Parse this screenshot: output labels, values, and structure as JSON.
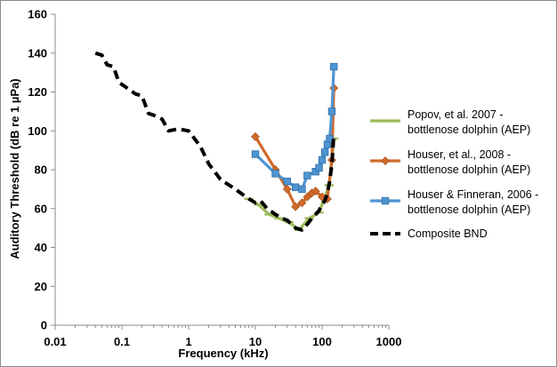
{
  "chart_data": {
    "type": "scatter",
    "title": "",
    "xlabel": "Frequency (kHz)",
    "ylabel": "Auditory Threshold (dB re 1 µPa)",
    "xscale": "log",
    "xlim": [
      0.01,
      1000
    ],
    "ylim": [
      0,
      160
    ],
    "xticks": [
      0.01,
      0.1,
      1,
      10,
      100,
      1000
    ],
    "xtick_labels": [
      "0.01",
      "0.1",
      "1",
      "10",
      "100",
      "1000"
    ],
    "yticks": [
      0,
      20,
      40,
      60,
      80,
      100,
      120,
      140,
      160
    ],
    "ytick_labels": [
      "0",
      "20",
      "40",
      "60",
      "80",
      "100",
      "120",
      "140",
      "160"
    ],
    "grid": false,
    "legend_position": "right",
    "series": [
      {
        "name": "Popov, et al. 2007 - bottlenose dolphin (AEP)",
        "color": "#9bbb59",
        "marker": "dash",
        "x": [
          8,
          11.2,
          16,
          22.5,
          32,
          45,
          64,
          90,
          128,
          150
        ],
        "y": [
          65,
          62,
          57,
          55,
          53,
          49,
          55,
          58,
          72,
          96
        ]
      },
      {
        "name": "Houser, et al., 2008 - bottlenose dolphin (AEP)",
        "color": "#d0692a",
        "marker": "diamond",
        "x": [
          10,
          20,
          30,
          40,
          50,
          60,
          70,
          80,
          100,
          120,
          140,
          150
        ],
        "y": [
          97,
          80,
          70,
          61,
          63,
          66,
          68,
          69,
          66,
          65,
          85,
          122
        ]
      },
      {
        "name": "Houser & Finneran, 2006 - bottlenose dolphin (AEP)",
        "color": "#4f95d2",
        "marker": "square",
        "x": [
          10,
          20,
          30,
          40,
          50,
          60,
          80,
          90,
          100,
          110,
          120,
          130,
          140,
          150
        ],
        "y": [
          88,
          78,
          74,
          71,
          70,
          77,
          79,
          81,
          85,
          89,
          93,
          96,
          110,
          133
        ]
      },
      {
        "name": "Composite BND",
        "color": "#000000",
        "marker": "none",
        "dashed": true,
        "x": [
          0.04,
          0.05,
          0.06,
          0.075,
          0.09,
          0.12,
          0.16,
          0.2,
          0.25,
          0.3,
          0.4,
          0.5,
          0.7,
          1,
          1.5,
          2,
          3,
          5,
          8,
          10,
          12,
          15,
          20,
          25,
          30,
          40,
          50,
          60,
          70,
          80,
          90,
          100,
          110,
          120,
          130,
          140,
          150
        ],
        "y": [
          140,
          139,
          134,
          133,
          125,
          122,
          119,
          118,
          109,
          108,
          106,
          100,
          101,
          100,
          92,
          83,
          75,
          70,
          65,
          63,
          64,
          60,
          57,
          55,
          54,
          50,
          49,
          52,
          55,
          57,
          59,
          62,
          64,
          68,
          74,
          83,
          98
        ]
      }
    ]
  }
}
